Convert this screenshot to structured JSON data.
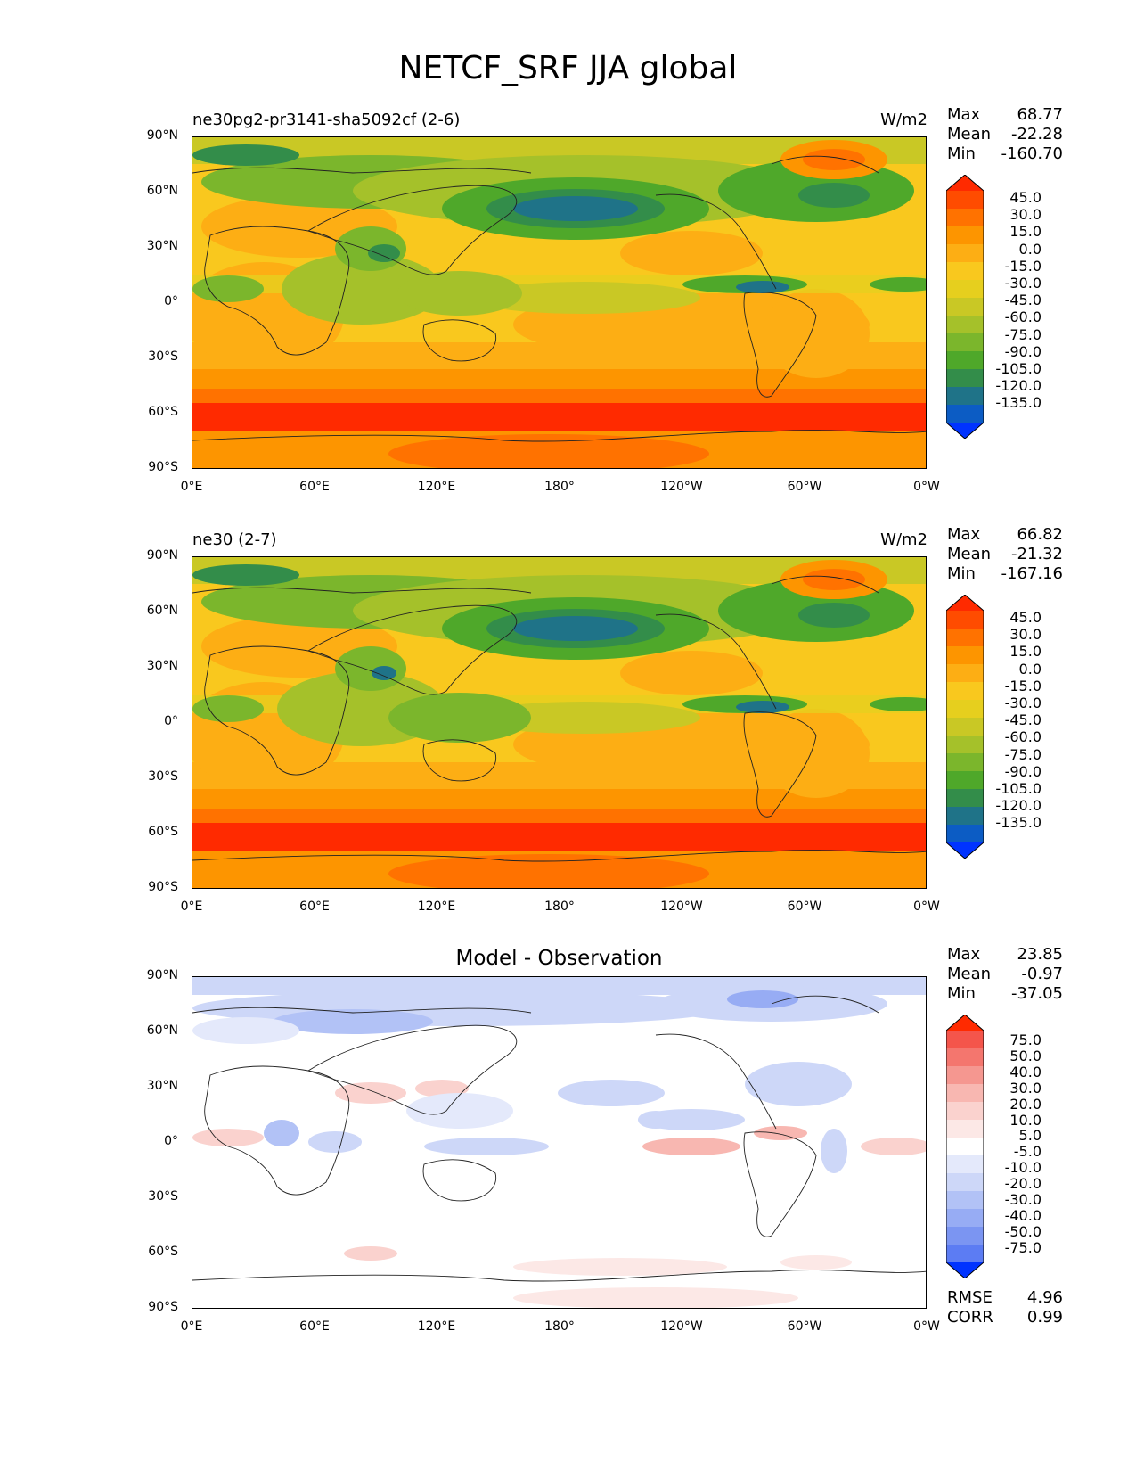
{
  "figure": {
    "title": "NETCF_SRF JJA global"
  },
  "axes": {
    "y_labels": [
      "90°N",
      "60°N",
      "30°N",
      "0°",
      "30°S",
      "60°S",
      "90°S"
    ],
    "x_labels": [
      "0°E",
      "60°E",
      "120°E",
      "180°",
      "120°W",
      "60°W",
      "0°W"
    ]
  },
  "panels": [
    {
      "title_left": "ne30pg2-pr3141-sha5092cf (2-6)",
      "title_right": "W/m2",
      "title_center": "",
      "stats": {
        "max_label": "Max",
        "max": "68.77",
        "mean_label": "Mean",
        "mean": "-22.28",
        "min_label": "Min",
        "min": "-160.70"
      },
      "colorbar_labels": [
        "45.0",
        "30.0",
        "15.0",
        "0.0",
        "-15.0",
        "-30.0",
        "-45.0",
        "-60.0",
        "-75.0",
        "-90.0",
        "-105.0",
        "-120.0",
        "-135.0"
      ],
      "colorbar_colors": [
        "#ff2a00",
        "#ff4c00",
        "#ff7200",
        "#fd9500",
        "#fdae14",
        "#f9c81e",
        "#e6cf1e",
        "#c9c825",
        "#a5c12a",
        "#7bb62c",
        "#4fa82a",
        "#338d4a",
        "#1f7388",
        "#0c5cc4",
        "#0033ff"
      ]
    },
    {
      "title_left": "ne30 (2-7)",
      "title_right": "W/m2",
      "title_center": "",
      "stats": {
        "max_label": "Max",
        "max": "66.82",
        "mean_label": "Mean",
        "mean": "-21.32",
        "min_label": "Min",
        "min": "-167.16"
      },
      "colorbar_labels": [
        "45.0",
        "30.0",
        "15.0",
        "0.0",
        "-15.0",
        "-30.0",
        "-45.0",
        "-60.0",
        "-75.0",
        "-90.0",
        "-105.0",
        "-120.0",
        "-135.0"
      ],
      "colorbar_colors": [
        "#ff2a00",
        "#ff4c00",
        "#ff7200",
        "#fd9500",
        "#fdae14",
        "#f9c81e",
        "#e6cf1e",
        "#c9c825",
        "#a5c12a",
        "#7bb62c",
        "#4fa82a",
        "#338d4a",
        "#1f7388",
        "#0c5cc4",
        "#0033ff"
      ]
    },
    {
      "title_left": "",
      "title_right": "",
      "title_center": "Model - Observation",
      "stats": {
        "max_label": "Max",
        "max": "23.85",
        "mean_label": "Mean",
        "mean": "-0.97",
        "min_label": "Min",
        "min": "-37.05"
      },
      "colorbar_labels": [
        "75.0",
        "50.0",
        "40.0",
        "30.0",
        "20.0",
        "10.0",
        "5.0",
        "-5.0",
        "-10.0",
        "-20.0",
        "-30.0",
        "-40.0",
        "-50.0",
        "-75.0"
      ],
      "colorbar_colors": [
        "#ff2a00",
        "#f4554b",
        "#f4766e",
        "#f59790",
        "#f8b7b1",
        "#fad2ce",
        "#fce8e6",
        "#ffffff",
        "#e4e9fb",
        "#cdd7f8",
        "#b2c2f6",
        "#97acf4",
        "#7b95f2",
        "#5c7cf3",
        "#0033ff"
      ],
      "bottom_stats": {
        "rmse_label": "RMSE",
        "rmse": "4.96",
        "corr_label": "CORR",
        "corr": "0.99"
      }
    }
  ],
  "chart_data": {
    "type": "heatmap",
    "title": "NETCF_SRF JJA global",
    "x_axis": {
      "range": [
        0,
        360
      ],
      "tick_labels": [
        "0°E",
        "60°E",
        "120°E",
        "180°",
        "120°W",
        "60°W",
        "0°W"
      ]
    },
    "y_axis": {
      "range": [
        -90,
        90
      ],
      "tick_labels": [
        "90°N",
        "60°N",
        "30°N",
        "0°",
        "30°S",
        "60°S",
        "90°S"
      ]
    },
    "panels": [
      {
        "name": "ne30pg2-pr3141-sha5092cf (2-6)",
        "units": "W/m2",
        "max": 68.77,
        "mean": -22.28,
        "min": -160.7,
        "levels": [
          -135,
          -120,
          -105,
          -90,
          -75,
          -60,
          -45,
          -30,
          -15,
          0,
          15,
          30,
          45
        ]
      },
      {
        "name": "ne30 (2-7)",
        "units": "W/m2",
        "max": 66.82,
        "mean": -21.32,
        "min": -167.16,
        "levels": [
          -135,
          -120,
          -105,
          -90,
          -75,
          -60,
          -45,
          -30,
          -15,
          0,
          15,
          30,
          45
        ]
      },
      {
        "name": "Model - Observation",
        "max": 23.85,
        "mean": -0.97,
        "min": -37.05,
        "rmse": 4.96,
        "corr": 0.99,
        "levels": [
          -75,
          -50,
          -40,
          -30,
          -20,
          -10,
          -5,
          5,
          10,
          20,
          30,
          40,
          50,
          75
        ]
      }
    ]
  }
}
